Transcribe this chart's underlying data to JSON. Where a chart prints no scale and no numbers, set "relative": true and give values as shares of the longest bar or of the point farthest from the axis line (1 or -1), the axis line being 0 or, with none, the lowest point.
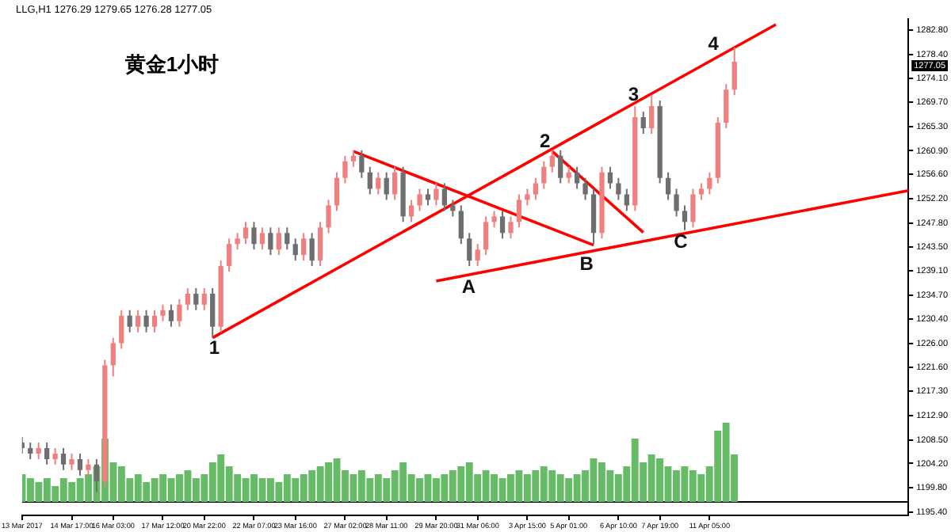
{
  "chart_data": [
    {
      "type": "candlestick",
      "title": "黄金1小时",
      "subtitle": "LLG,H1  1276.29 1279.65 1276.28 1277.05",
      "categories": [
        "13 Mar 2017",
        null,
        null,
        null,
        null,
        null,
        "14 Mar 17:00",
        null,
        null,
        null,
        null,
        "16 Mar 03:00",
        null,
        null,
        null,
        null,
        null,
        "17 Mar 12:00",
        null,
        null,
        null,
        null,
        "20 Mar 22:00",
        null,
        null,
        null,
        null,
        null,
        "22 Mar 07:00",
        null,
        null,
        null,
        null,
        "23 Mar 16:00",
        null,
        null,
        null,
        null,
        null,
        "27 Mar 02:00",
        null,
        null,
        null,
        null,
        "28 Mar 11:00",
        null,
        null,
        null,
        null,
        null,
        "29 Mar 20:00",
        null,
        null,
        null,
        null,
        "31 Mar 06:00",
        null,
        null,
        null,
        null,
        null,
        "3 Apr 15:00",
        null,
        null,
        null,
        null,
        "5 Apr 01:00",
        null,
        null,
        null,
        null,
        null,
        "6 Apr 10:00",
        null,
        null,
        null,
        null,
        "7 Apr 19:00",
        null,
        null,
        null,
        null,
        null,
        "11 Apr 05:00",
        null,
        null,
        null,
        null,
        null,
        null,
        null,
        null,
        null,
        null,
        null,
        null,
        null,
        null,
        null,
        null,
        null,
        null,
        null,
        null,
        null,
        null,
        null,
        null
      ],
      "ohlc": [
        [
          1208,
          1209,
          1206,
          1207
        ],
        [
          1207,
          1208,
          1205,
          1206
        ],
        [
          1206,
          1208,
          1205,
          1207
        ],
        [
          1207,
          1208,
          1204,
          1205
        ],
        [
          1205,
          1207,
          1204,
          1206
        ],
        [
          1206,
          1207,
          1203,
          1204
        ],
        [
          1204,
          1206,
          1203,
          1205
        ],
        [
          1205,
          1206,
          1202,
          1203
        ],
        [
          1203,
          1205,
          1202,
          1204
        ],
        [
          1204,
          1205,
          1199,
          1201
        ],
        [
          1201,
          1223,
          1200,
          1222
        ],
        [
          1222,
          1227,
          1220,
          1226
        ],
        [
          1226,
          1232,
          1225,
          1231
        ],
        [
          1231,
          1232,
          1228,
          1229
        ],
        [
          1229,
          1232,
          1228,
          1231
        ],
        [
          1231,
          1232,
          1228,
          1229
        ],
        [
          1229,
          1232,
          1228,
          1231
        ],
        [
          1231,
          1233,
          1230,
          1232
        ],
        [
          1232,
          1233,
          1229,
          1230
        ],
        [
          1230,
          1234,
          1229,
          1233
        ],
        [
          1233,
          1236,
          1232,
          1235
        ],
        [
          1235,
          1236,
          1232,
          1233
        ],
        [
          1233,
          1236,
          1232,
          1235
        ],
        [
          1235,
          1236,
          1227,
          1229
        ],
        [
          1229,
          1241,
          1228,
          1240
        ],
        [
          1240,
          1245,
          1239,
          1244
        ],
        [
          1244,
          1246,
          1243,
          1245
        ],
        [
          1245,
          1248,
          1244,
          1247
        ],
        [
          1247,
          1248,
          1243,
          1244
        ],
        [
          1244,
          1247,
          1243,
          1246
        ],
        [
          1246,
          1247,
          1242,
          1243
        ],
        [
          1243,
          1247,
          1242,
          1246
        ],
        [
          1246,
          1247,
          1243,
          1244
        ],
        [
          1244,
          1245,
          1241,
          1242
        ],
        [
          1242,
          1246,
          1241,
          1245
        ],
        [
          1245,
          1246,
          1240,
          1241
        ],
        [
          1241,
          1248,
          1240,
          1247
        ],
        [
          1247,
          1252,
          1246,
          1251
        ],
        [
          1251,
          1257,
          1250,
          1256
        ],
        [
          1256,
          1260,
          1255,
          1259
        ],
        [
          1259,
          1261,
          1258,
          1260
        ],
        [
          1260,
          1261,
          1256,
          1257
        ],
        [
          1257,
          1258,
          1253,
          1254
        ],
        [
          1254,
          1257,
          1253,
          1256
        ],
        [
          1256,
          1257,
          1252,
          1253
        ],
        [
          1253,
          1258,
          1252,
          1257
        ],
        [
          1257,
          1258,
          1248,
          1249
        ],
        [
          1249,
          1252,
          1248,
          1251
        ],
        [
          1251,
          1254,
          1250,
          1253
        ],
        [
          1253,
          1254,
          1251,
          1252
        ],
        [
          1252,
          1255,
          1251,
          1254
        ],
        [
          1254,
          1255,
          1250,
          1251
        ],
        [
          1251,
          1252,
          1249,
          1250
        ],
        [
          1250,
          1251,
          1244,
          1245
        ],
        [
          1245,
          1246,
          1240,
          1241
        ],
        [
          1241,
          1244,
          1240,
          1243
        ],
        [
          1243,
          1249,
          1242,
          1248
        ],
        [
          1248,
          1250,
          1247,
          1249
        ],
        [
          1249,
          1250,
          1245,
          1246
        ],
        [
          1246,
          1249,
          1245,
          1248
        ],
        [
          1248,
          1253,
          1247,
          1252
        ],
        [
          1252,
          1254,
          1251,
          1253
        ],
        [
          1253,
          1256,
          1252,
          1255
        ],
        [
          1255,
          1259,
          1254,
          1258
        ],
        [
          1258,
          1261,
          1257,
          1260
        ],
        [
          1260,
          1261,
          1255,
          1256
        ],
        [
          1256,
          1258,
          1255,
          1257
        ],
        [
          1257,
          1258,
          1254,
          1255
        ],
        [
          1255,
          1256,
          1252,
          1253
        ],
        [
          1253,
          1254,
          1244,
          1246
        ],
        [
          1246,
          1258,
          1245,
          1257
        ],
        [
          1257,
          1258,
          1254,
          1255
        ],
        [
          1255,
          1256,
          1252,
          1253
        ],
        [
          1253,
          1254,
          1250,
          1251
        ],
        [
          1251,
          1269,
          1250,
          1267
        ],
        [
          1267,
          1268,
          1264,
          1265
        ],
        [
          1265,
          1271,
          1264,
          1269
        ],
        [
          1269,
          1270,
          1255,
          1256
        ],
        [
          1256,
          1257,
          1252,
          1253
        ],
        [
          1253,
          1254,
          1249,
          1250
        ],
        [
          1250,
          1251,
          1246.5,
          1248
        ],
        [
          1248,
          1254,
          1247,
          1253
        ],
        [
          1253,
          1255,
          1252,
          1254
        ],
        [
          1254,
          1257,
          1253,
          1256
        ],
        [
          1256,
          1267,
          1255,
          1266
        ],
        [
          1266,
          1273,
          1265,
          1272
        ],
        [
          1272,
          1279.65,
          1271,
          1277.05
        ],
        null,
        null,
        null,
        null,
        null,
        null,
        null,
        null,
        null,
        null,
        null,
        null,
        null,
        null,
        null,
        null,
        null,
        null,
        null,
        null,
        null
      ],
      "series": [
        {
          "type": "line",
          "color": "#ff0000",
          "values": [
            null,
            null,
            null,
            null,
            null,
            null,
            null,
            null,
            null,
            null,
            null,
            null,
            null,
            null,
            null,
            null,
            null,
            null,
            null,
            null,
            null,
            null,
            null,
            1227,
            null,
            null,
            null,
            null,
            null,
            null,
            null,
            null,
            null,
            null,
            null,
            null,
            null,
            null,
            null,
            null,
            null,
            null,
            null,
            null,
            null,
            null,
            null,
            null,
            null,
            null,
            null,
            null,
            null,
            null,
            null,
            null,
            null,
            null,
            null,
            null,
            null,
            null,
            null,
            null,
            null,
            null,
            null,
            null,
            null,
            null,
            null,
            null,
            null,
            null,
            null,
            null,
            null,
            null,
            null,
            null,
            null,
            null,
            null,
            null,
            null,
            null,
            null,
            null,
            null,
            null,
            null,
            1283.8,
            null,
            null,
            null,
            null,
            null,
            null,
            null,
            null,
            null,
            null,
            null,
            null,
            null,
            null,
            null,
            null
          ]
        },
        {
          "type": "line",
          "color": "#ff0000",
          "values": [
            null,
            null,
            null,
            null,
            null,
            null,
            null,
            null,
            null,
            null,
            null,
            null,
            null,
            null,
            null,
            null,
            null,
            null,
            null,
            null,
            null,
            null,
            null,
            null,
            null,
            null,
            null,
            null,
            null,
            null,
            null,
            null,
            null,
            null,
            null,
            null,
            null,
            null,
            null,
            null,
            1260.8,
            null,
            null,
            null,
            null,
            null,
            null,
            null,
            null,
            null,
            null,
            null,
            null,
            null,
            null,
            null,
            null,
            null,
            null,
            null,
            null,
            null,
            null,
            null,
            null,
            null,
            null,
            null,
            null,
            1243.8,
            null,
            null,
            null,
            null,
            null,
            null,
            null,
            null,
            null,
            null,
            null,
            null,
            null,
            null,
            null,
            null,
            null,
            null,
            null,
            null,
            null,
            null,
            null,
            null,
            null,
            null,
            null,
            null,
            null,
            null,
            null,
            null,
            null,
            null,
            null,
            null,
            null,
            null
          ]
        },
        {
          "type": "line",
          "color": "#ff0000",
          "values": [
            null,
            null,
            null,
            null,
            null,
            null,
            null,
            null,
            null,
            null,
            null,
            null,
            null,
            null,
            null,
            null,
            null,
            null,
            null,
            null,
            null,
            null,
            null,
            null,
            null,
            null,
            null,
            null,
            null,
            null,
            null,
            null,
            null,
            null,
            null,
            null,
            null,
            null,
            null,
            null,
            null,
            null,
            null,
            null,
            null,
            null,
            null,
            null,
            null,
            null,
            null,
            null,
            null,
            null,
            null,
            null,
            null,
            null,
            null,
            null,
            null,
            null,
            null,
            null,
            1260.8,
            null,
            null,
            null,
            null,
            null,
            null,
            null,
            null,
            null,
            null,
            1246.1,
            null,
            null,
            null,
            null,
            null,
            null,
            null,
            null,
            null,
            null,
            null,
            null,
            null,
            null,
            null,
            null,
            null,
            null,
            null,
            null,
            null,
            null,
            null,
            null,
            null,
            null,
            null,
            null,
            null,
            null,
            null,
            null
          ]
        },
        {
          "type": "line",
          "color": "#ff0000",
          "values": [
            null,
            null,
            null,
            null,
            null,
            null,
            null,
            null,
            null,
            null,
            null,
            null,
            null,
            null,
            null,
            null,
            null,
            null,
            null,
            null,
            null,
            null,
            null,
            null,
            null,
            null,
            null,
            null,
            null,
            null,
            null,
            null,
            null,
            null,
            null,
            null,
            null,
            null,
            null,
            null,
            null,
            null,
            null,
            null,
            null,
            null,
            null,
            null,
            null,
            null,
            1237.3,
            null,
            null,
            null,
            null,
            null,
            null,
            null,
            null,
            null,
            null,
            null,
            null,
            null,
            null,
            null,
            null,
            null,
            null,
            null,
            null,
            null,
            null,
            null,
            null,
            null,
            null,
            null,
            null,
            null,
            null,
            null,
            null,
            null,
            null,
            null,
            null,
            null,
            null,
            null,
            null,
            null,
            null,
            null,
            null,
            null,
            null,
            null,
            null,
            null,
            null,
            null,
            null,
            null,
            null,
            null,
            null,
            1253.7
          ]
        }
      ],
      "ylim": [
        1194.8,
        1284.8
      ],
      "yticks": [
        {
          "value": 1282.8,
          "label": "1282.80"
        },
        {
          "value": 1278.4,
          "label": "1278.40"
        },
        {
          "value": 1274.1,
          "label": "1274.10"
        },
        {
          "value": 1269.7,
          "label": "1269.70"
        },
        {
          "value": 1265.3,
          "label": "1265.30"
        },
        {
          "value": 1260.9,
          "label": "1260.90"
        },
        {
          "value": 1256.6,
          "label": "1256.60"
        },
        {
          "value": 1252.2,
          "label": "1252.20"
        },
        {
          "value": 1247.8,
          "label": "1247.80"
        },
        {
          "value": 1243.5,
          "label": "1243.50"
        },
        {
          "value": 1239.1,
          "label": "1239.10"
        },
        {
          "value": 1234.7,
          "label": "1234.70"
        },
        {
          "value": 1230.4,
          "label": "1230.40"
        },
        {
          "value": 1226,
          "label": "1226.00"
        },
        {
          "value": 1221.6,
          "label": "1221.60"
        },
        {
          "value": 1217.3,
          "label": "1217.30"
        },
        {
          "value": 1212.9,
          "label": "1212.90"
        },
        {
          "value": 1208.5,
          "label": "1208.50"
        },
        {
          "value": 1204.2,
          "label": "1204.20"
        },
        {
          "value": 1199.8,
          "label": "1199.80"
        },
        {
          "value": 1195.4,
          "label": "1195.40"
        }
      ],
      "annotations": [
        "1",
        "2",
        "3",
        "4",
        "A",
        "B",
        "C",
        "1277.05"
      ],
      "grid": false,
      "legend": false
    },
    {
      "type": "bar",
      "relative": true,
      "color": "#66bb66",
      "categories": [
        null,
        null,
        null,
        null,
        null,
        null,
        null,
        null,
        null,
        null,
        null,
        null,
        null,
        null,
        null,
        null,
        null,
        null,
        null,
        null,
        null,
        null,
        null,
        null,
        null,
        null,
        null,
        null,
        null,
        null,
        null,
        null,
        null,
        null,
        null,
        null,
        null,
        null,
        null,
        null,
        null,
        null,
        null,
        null,
        null,
        null,
        null,
        null,
        null,
        null,
        null,
        null,
        null,
        null,
        null,
        null,
        null,
        null,
        null,
        null,
        null,
        null,
        null,
        null,
        null,
        null,
        null,
        null,
        null,
        null,
        null,
        null,
        null,
        null,
        null,
        null,
        null,
        null,
        null,
        null,
        null,
        null,
        null,
        null,
        null,
        null,
        null,
        null,
        null,
        null,
        null,
        null,
        null,
        null,
        null,
        null,
        null,
        null,
        null,
        null,
        null,
        null,
        null,
        null,
        null,
        null,
        null,
        null
      ],
      "values": [
        0.35,
        0.3,
        0.25,
        0.3,
        0.2,
        0.3,
        0.25,
        0.3,
        0.35,
        0.45,
        0.8,
        0.5,
        0.45,
        0.3,
        0.35,
        0.25,
        0.3,
        0.35,
        0.3,
        0.35,
        0.4,
        0.3,
        0.35,
        0.5,
        0.6,
        0.45,
        0.35,
        0.3,
        0.35,
        0.3,
        0.3,
        0.25,
        0.35,
        0.3,
        0.35,
        0.4,
        0.45,
        0.5,
        0.55,
        0.4,
        0.35,
        0.4,
        0.3,
        0.35,
        0.3,
        0.4,
        0.5,
        0.35,
        0.3,
        0.35,
        0.3,
        0.35,
        0.4,
        0.45,
        0.5,
        0.35,
        0.4,
        0.35,
        0.3,
        0.35,
        0.4,
        0.35,
        0.4,
        0.45,
        0.4,
        0.35,
        0.3,
        0.35,
        0.4,
        0.55,
        0.5,
        0.4,
        0.35,
        0.45,
        0.8,
        0.5,
        0.6,
        0.55,
        0.45,
        0.4,
        0.45,
        0.4,
        0.35,
        0.45,
        0.9,
        1,
        0.6,
        null,
        null,
        null,
        null,
        null,
        null,
        null,
        null,
        null,
        null,
        null,
        null,
        null,
        null,
        null,
        null,
        null,
        null,
        null,
        null,
        null
      ]
    }
  ]
}
